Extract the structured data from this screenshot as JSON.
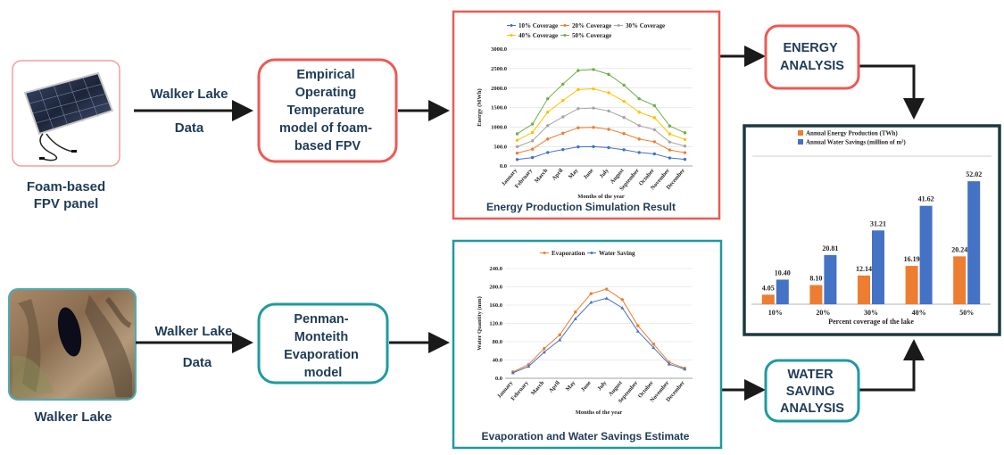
{
  "panel": {
    "caption_line1": "Foam-based",
    "caption_line2": "FPV panel"
  },
  "lake": {
    "caption": "Walker Lake"
  },
  "arrows": {
    "top_label_line1": "Walker Lake",
    "top_label_line2": "Data",
    "bottom_label_line1": "Walker Lake",
    "bottom_label_line2": "Data"
  },
  "boxes": {
    "temperature_model": [
      "Empirical",
      "Operating",
      "Temperature",
      "model of foam-",
      "based FPV"
    ],
    "evaporation_model": [
      "Penman-",
      "Monteith",
      "Evaporation",
      "model"
    ],
    "energy_analysis": [
      "ENERGY",
      "ANALYSIS"
    ],
    "water_analysis": [
      "WATER",
      "SAVING",
      "ANALYSIS"
    ]
  },
  "colors": {
    "red_border": "#ec5a54",
    "teal_border": "#1f9aa0",
    "dark_border": "#1d3a40",
    "text": "#1f3b57",
    "orange": "#ed7d31",
    "blue": "#4472c4",
    "gray": "#a5a5a5",
    "yellow": "#ffc000",
    "green": "#70ad47"
  },
  "chart_energy_caption": "Energy Production Simulation Result",
  "chart_evap_caption": "Evaporation and Water Savings Estimate",
  "chart_data": [
    {
      "type": "line",
      "x": [
        "January",
        "February",
        "March",
        "April",
        "May",
        "June",
        "July",
        "August",
        "September",
        "October",
        "November",
        "December"
      ],
      "series": [
        {
          "name": "10% Coverage",
          "values": [
            165,
            215,
            345,
            420,
            490,
            495,
            470,
            415,
            345,
            310,
            205,
            170
          ]
        },
        {
          "name": "20% Coverage",
          "values": [
            330,
            430,
            690,
            840,
            980,
            990,
            940,
            830,
            690,
            620,
            410,
            340
          ]
        },
        {
          "name": "30% Coverage",
          "values": [
            495,
            645,
            1035,
            1260,
            1470,
            1485,
            1410,
            1245,
            1035,
            930,
            615,
            510
          ]
        },
        {
          "name": "40% Coverage",
          "values": [
            660,
            860,
            1380,
            1680,
            1960,
            1980,
            1880,
            1660,
            1380,
            1240,
            820,
            680
          ]
        },
        {
          "name": "50% Coverage",
          "values": [
            825,
            1075,
            1725,
            2100,
            2450,
            2475,
            2350,
            2075,
            1725,
            1550,
            1025,
            850
          ]
        }
      ],
      "xlabel": "Months of the year",
      "ylabel": "Energy (MWh)",
      "ylim": [
        0,
        3000
      ],
      "yticks": [
        "0.0",
        "500.0",
        "1000.0",
        "1500.0",
        "2000.0",
        "2500.0",
        "3000.0"
      ],
      "legend": "top"
    },
    {
      "type": "line",
      "x": [
        "January",
        "February",
        "March",
        "April",
        "May",
        "June",
        "July",
        "August",
        "September",
        "October",
        "November",
        "December"
      ],
      "series": [
        {
          "name": "Evaporation",
          "values": [
            14,
            30,
            65,
            95,
            145,
            185,
            195,
            172,
            115,
            75,
            35,
            22
          ]
        },
        {
          "name": "Water Saving",
          "values": [
            12,
            26,
            57,
            84,
            130,
            166,
            175,
            154,
            103,
            67,
            31,
            20
          ]
        }
      ],
      "xlabel": "Months of the year",
      "ylabel": "Water Quantity (mm)",
      "ylim": [
        0,
        240
      ],
      "yticks": [
        "0.0",
        "40.0",
        "80.0",
        "120.0",
        "160.0",
        "200.0",
        "240.0"
      ],
      "legend": "top"
    },
    {
      "type": "bar",
      "categories": [
        "10%",
        "20%",
        "30%",
        "40%",
        "50%"
      ],
      "series": [
        {
          "name": "Annual Energy Production (TWh)",
          "values": [
            4.05,
            8.1,
            12.14,
            16.19,
            20.24
          ],
          "labels": [
            "4.05",
            "8.10",
            "12.14",
            "16.19",
            "20.24"
          ]
        },
        {
          "name": "Annual Water Savings (million of m³)",
          "values": [
            10.4,
            20.81,
            31.21,
            41.62,
            52.02
          ],
          "labels": [
            "10.40",
            "20.81",
            "31.21",
            "41.62",
            "52.02"
          ]
        }
      ],
      "xlabel": "Percent coverage of the lake",
      "ylim": [
        0,
        60
      ],
      "legend": "top"
    }
  ]
}
